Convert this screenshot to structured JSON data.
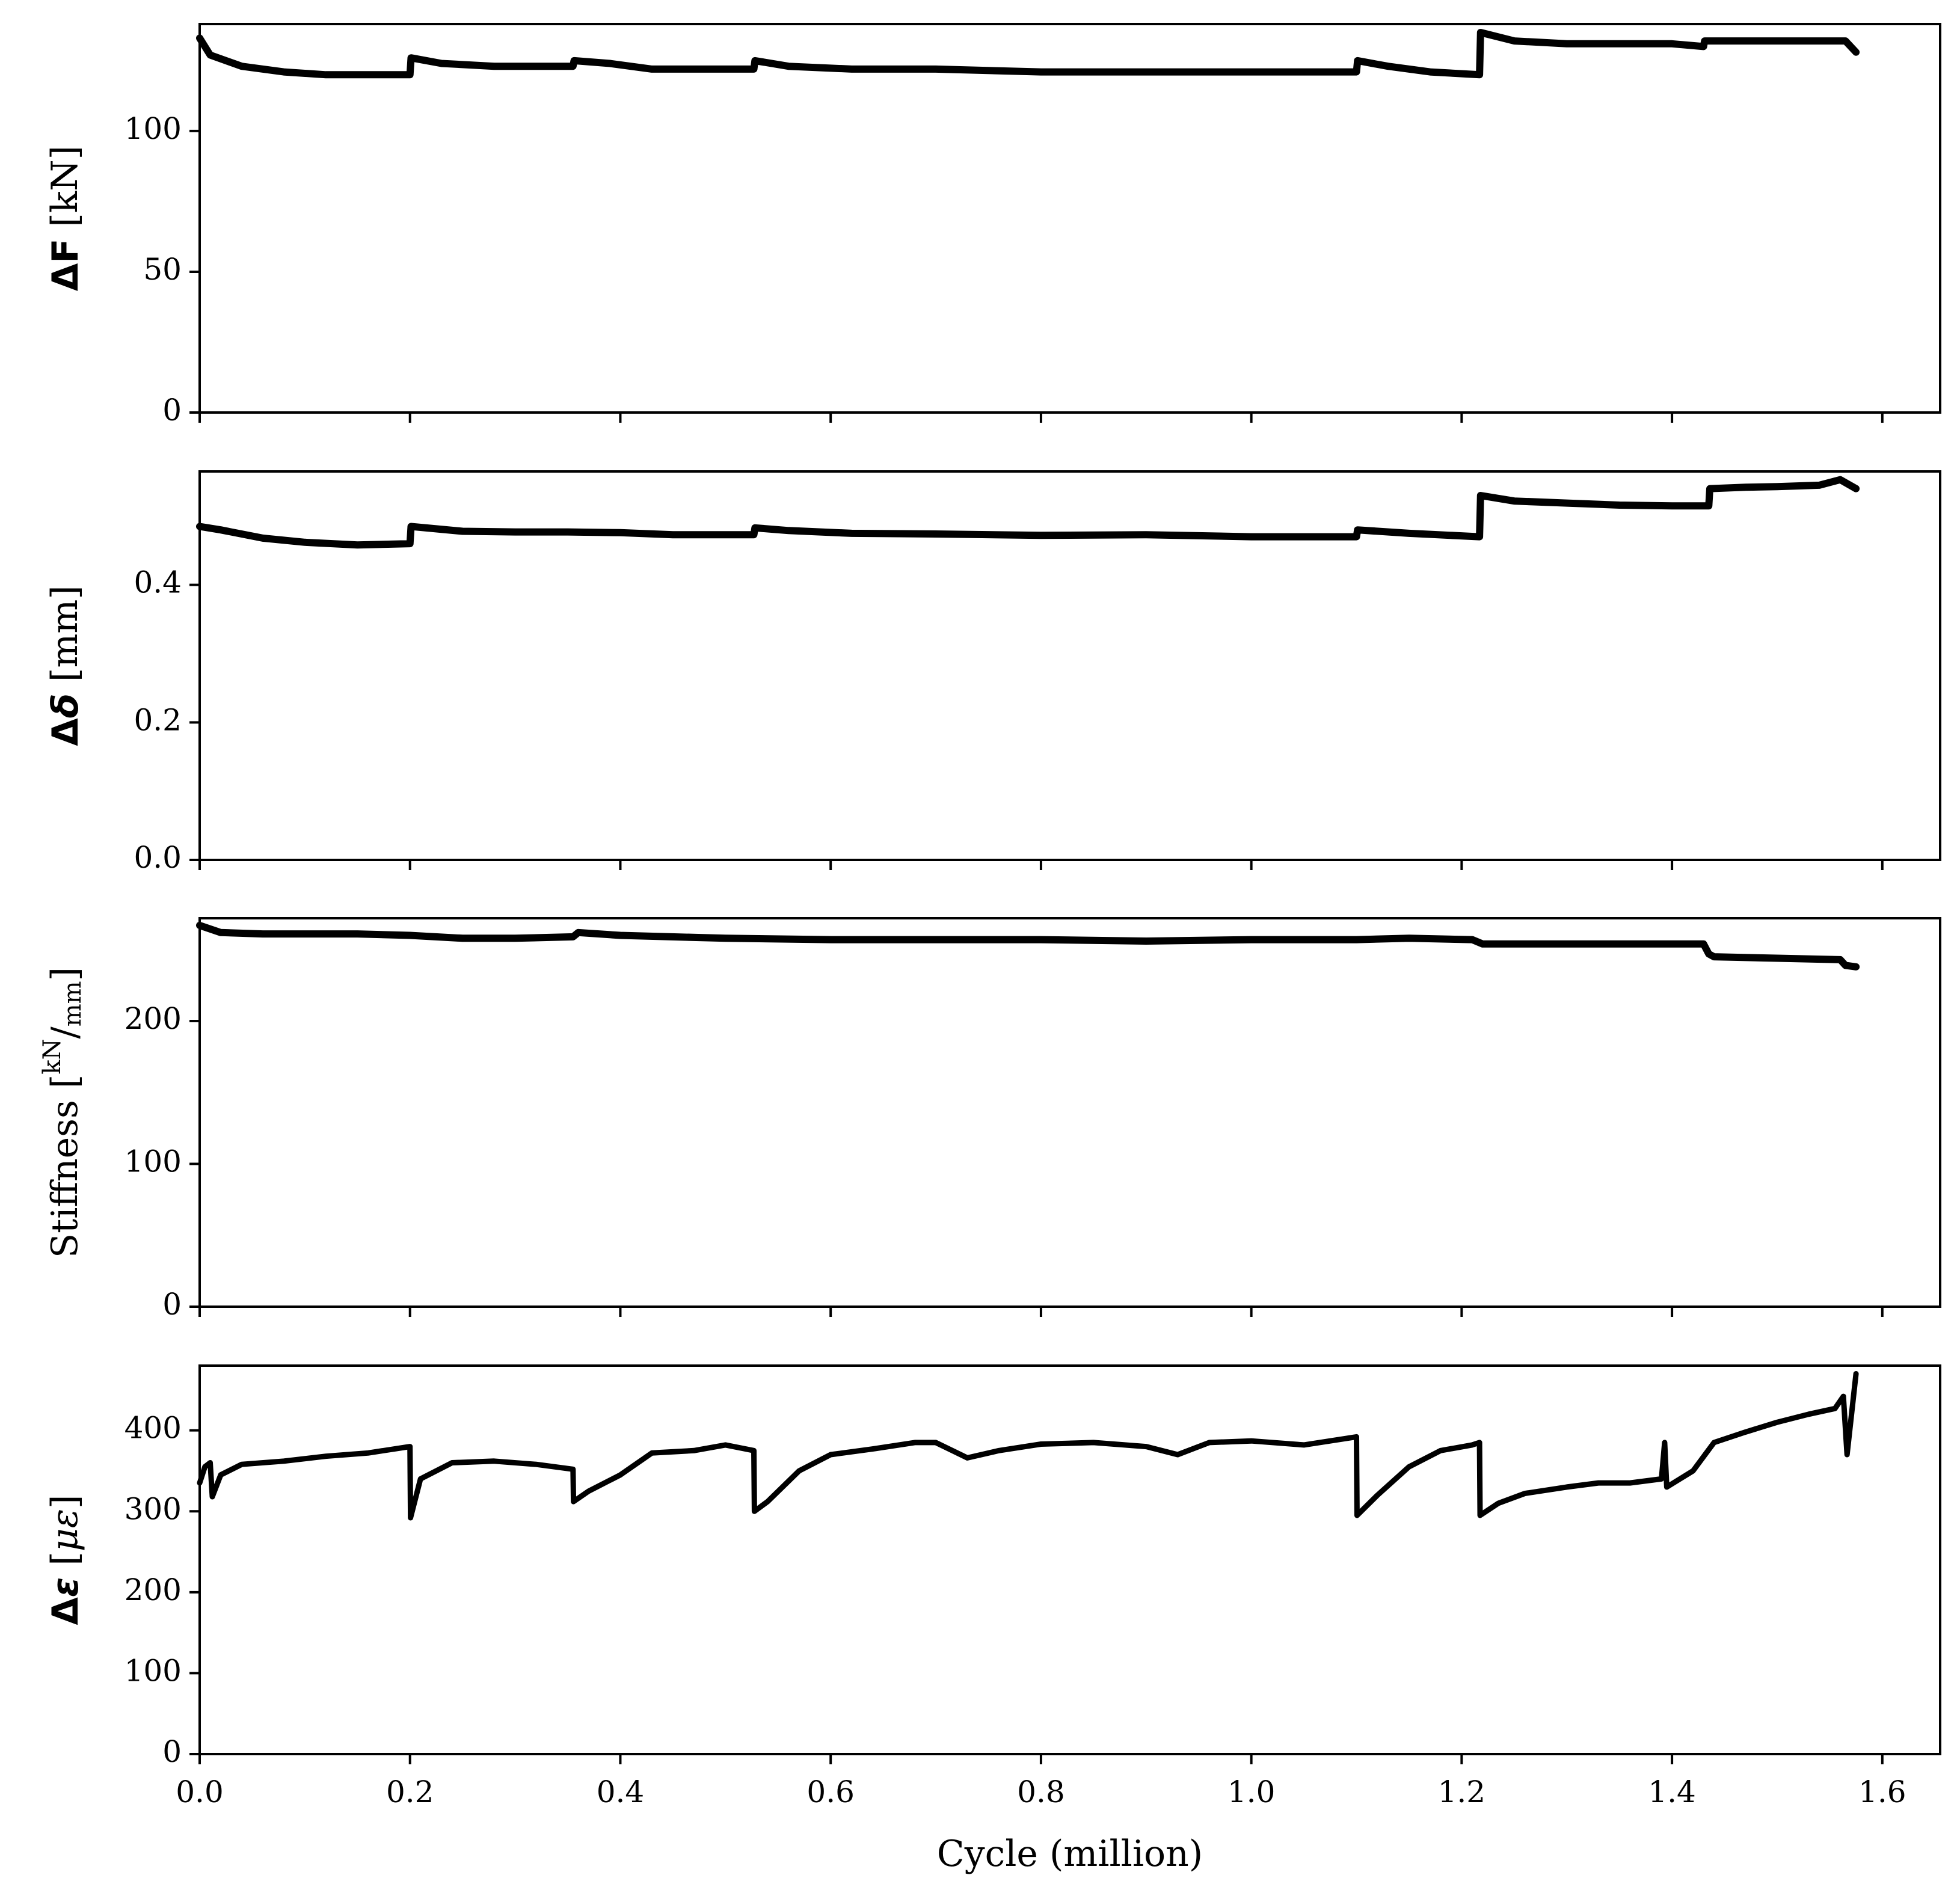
{
  "chart_data": [
    {
      "type": "line",
      "xlabel": "",
      "ylabel": {
        "prefix": "Δ",
        "symbol": "F",
        "unit": " [kN]"
      },
      "xlim": [
        0.0,
        1.655
      ],
      "ylim": [
        0,
        138
      ],
      "yticks": [
        0,
        50,
        100
      ],
      "ytick_labels": [
        "0",
        "50",
        "100"
      ],
      "xticks": [
        0.0,
        0.2,
        0.4,
        0.6,
        0.8,
        1.0,
        1.2,
        1.4,
        1.6
      ],
      "series": [
        {
          "x": [
            0.0,
            0.01,
            0.04,
            0.08,
            0.12,
            0.16,
            0.2,
            0.201,
            0.23,
            0.28,
            0.33,
            0.355,
            0.356,
            0.39,
            0.43,
            0.47,
            0.527,
            0.528,
            0.56,
            0.62,
            0.7,
            0.8,
            0.9,
            1.0,
            1.1,
            1.101,
            1.13,
            1.17,
            1.217,
            1.218,
            1.25,
            1.3,
            1.35,
            1.4,
            1.43,
            1.431,
            1.47,
            1.5,
            1.54,
            1.565,
            1.575
          ],
          "y": [
            133,
            127,
            123,
            121,
            120,
            120,
            120,
            126,
            124,
            123,
            123,
            123,
            125,
            124,
            122,
            122,
            122,
            125,
            123,
            122,
            122,
            121,
            121,
            121,
            121,
            125,
            123,
            121,
            120,
            135,
            132,
            131,
            131,
            131,
            130,
            132,
            132,
            132,
            132,
            132,
            128
          ]
        }
      ]
    },
    {
      "type": "line",
      "xlabel": "",
      "ylabel": {
        "prefix": "Δ",
        "symbol": "δ",
        "unit": " [mm]"
      },
      "xlim": [
        0.0,
        1.655
      ],
      "ylim": [
        0.0,
        0.565
      ],
      "yticks": [
        0.0,
        0.2,
        0.4
      ],
      "ytick_labels": [
        "0.0",
        "0.2",
        "0.4"
      ],
      "xticks": [
        0.0,
        0.2,
        0.4,
        0.6,
        0.8,
        1.0,
        1.2,
        1.4,
        1.6
      ],
      "series": [
        {
          "x": [
            0.0,
            0.02,
            0.06,
            0.1,
            0.15,
            0.2,
            0.201,
            0.25,
            0.3,
            0.35,
            0.4,
            0.45,
            0.527,
            0.528,
            0.56,
            0.62,
            0.7,
            0.8,
            0.9,
            1.0,
            1.1,
            1.101,
            1.15,
            1.217,
            1.218,
            1.25,
            1.3,
            1.35,
            1.4,
            1.435,
            1.436,
            1.47,
            1.5,
            1.54,
            1.56,
            1.575
          ],
          "y": [
            0.485,
            0.48,
            0.468,
            0.462,
            0.458,
            0.46,
            0.485,
            0.478,
            0.477,
            0.477,
            0.476,
            0.473,
            0.473,
            0.483,
            0.479,
            0.475,
            0.474,
            0.472,
            0.473,
            0.47,
            0.47,
            0.48,
            0.475,
            0.47,
            0.53,
            0.522,
            0.519,
            0.516,
            0.515,
            0.515,
            0.54,
            0.542,
            0.543,
            0.545,
            0.553,
            0.54
          ]
        }
      ]
    },
    {
      "type": "line",
      "xlabel": "",
      "ylabel": {
        "prefix": "Stiffness [",
        "num": "kN",
        "slash": "/",
        "den": "mm",
        "suffix": "]"
      },
      "xlim": [
        0.0,
        1.655
      ],
      "ylim": [
        0,
        272
      ],
      "yticks": [
        0,
        100,
        200
      ],
      "ytick_labels": [
        "0",
        "100",
        "200"
      ],
      "xticks": [
        0.0,
        0.2,
        0.4,
        0.6,
        0.8,
        1.0,
        1.2,
        1.4,
        1.6
      ],
      "series": [
        {
          "x": [
            0.0,
            0.02,
            0.06,
            0.1,
            0.15,
            0.2,
            0.25,
            0.3,
            0.355,
            0.36,
            0.4,
            0.5,
            0.6,
            0.7,
            0.8,
            0.9,
            1.0,
            1.1,
            1.15,
            1.21,
            1.22,
            1.3,
            1.4,
            1.43,
            1.435,
            1.44,
            1.5,
            1.56,
            1.565,
            1.575
          ],
          "y": [
            267,
            262,
            261,
            261,
            261,
            260,
            258,
            258,
            259,
            262,
            260,
            258,
            257,
            257,
            257,
            256,
            257,
            257,
            258,
            257,
            254,
            254,
            254,
            254,
            247,
            245,
            244,
            243,
            239,
            238
          ]
        }
      ]
    },
    {
      "type": "line",
      "xlabel": "Cycle (million)",
      "ylabel": {
        "prefix": "Δ",
        "symbol": "ε",
        "unit": " [",
        "unit_italic": "με",
        "unit_end": "]"
      },
      "xlim": [
        0.0,
        1.655
      ],
      "ylim": [
        0,
        480
      ],
      "yticks": [
        0,
        100,
        200,
        300,
        400
      ],
      "ytick_labels": [
        "0",
        "100",
        "200",
        "300",
        "400"
      ],
      "xticks": [
        0.0,
        0.2,
        0.4,
        0.6,
        0.8,
        1.0,
        1.2,
        1.4,
        1.6
      ],
      "xtick_labels": [
        "0.0",
        "0.2",
        "0.4",
        "0.6",
        "0.8",
        "1.0",
        "1.2",
        "1.4",
        "1.6"
      ],
      "series": [
        {
          "x": [
            0.0,
            0.005,
            0.01,
            0.012,
            0.02,
            0.04,
            0.08,
            0.12,
            0.16,
            0.2,
            0.2005,
            0.21,
            0.24,
            0.28,
            0.32,
            0.355,
            0.3555,
            0.37,
            0.4,
            0.43,
            0.47,
            0.5,
            0.527,
            0.5275,
            0.54,
            0.57,
            0.6,
            0.64,
            0.68,
            0.7,
            0.73,
            0.76,
            0.8,
            0.85,
            0.9,
            0.93,
            0.96,
            1.0,
            1.05,
            1.1,
            1.1005,
            1.12,
            1.15,
            1.18,
            1.21,
            1.217,
            1.2175,
            1.235,
            1.26,
            1.3,
            1.33,
            1.36,
            1.39,
            1.393,
            1.395,
            1.42,
            1.44,
            1.47,
            1.5,
            1.53,
            1.555,
            1.563,
            1.5665,
            1.575
          ],
          "y": [
            335,
            355,
            360,
            318,
            345,
            358,
            362,
            368,
            372,
            380,
            292,
            340,
            360,
            362,
            358,
            352,
            312,
            325,
            345,
            372,
            375,
            382,
            375,
            300,
            312,
            350,
            370,
            377,
            385,
            385,
            366,
            375,
            383,
            385,
            380,
            370,
            385,
            387,
            382,
            392,
            295,
            320,
            355,
            375,
            382,
            385,
            295,
            310,
            322,
            330,
            335,
            335,
            340,
            385,
            330,
            350,
            385,
            398,
            410,
            420,
            427,
            442,
            370,
            470
          ]
        }
      ]
    }
  ]
}
